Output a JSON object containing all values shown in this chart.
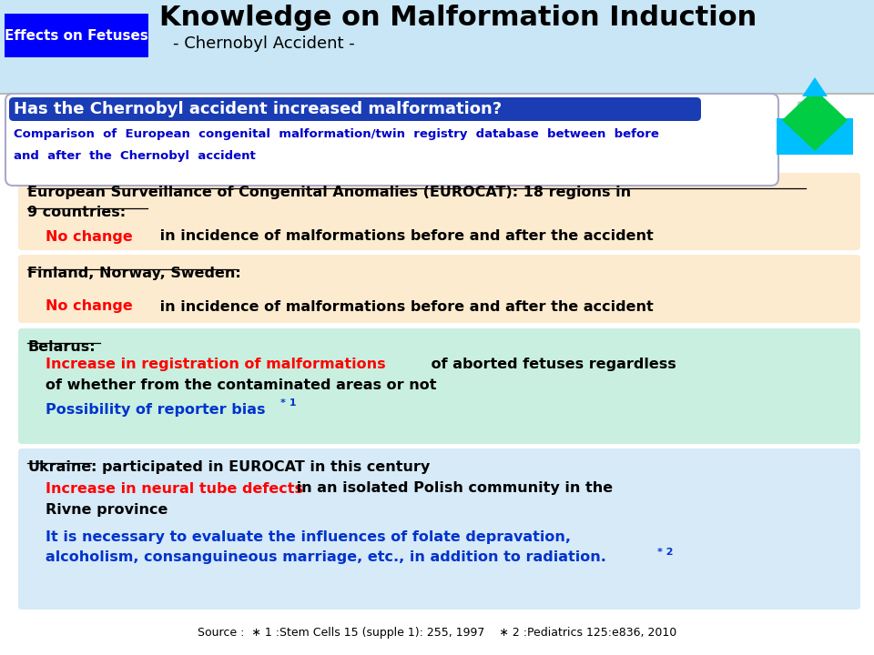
{
  "title_main": "Knowledge on Malformation Induction",
  "title_sub": "- Chernobyl Accident -",
  "tag_text": "Effects on Fetuses",
  "tag_bg": "#0000FF",
  "tag_fg": "#FFFFFF",
  "header_bg": "#C8E6F5",
  "question_text": "Has the Chernobyl accident increased malformation?",
  "question_bg": "#1A3DB5",
  "question_fg": "#FFFFFF",
  "comparison_line1": "Comparison  of  European  congenital  malformation/twin  registry  database  between  before",
  "comparison_line2": "and  after  the  Chernobyl  accident",
  "comparison_fg": "#0000CC",
  "box1_bg": "#FDEBD0",
  "box2_bg": "#FDEBD0",
  "box3_bg": "#C8EFE0",
  "box4_bg": "#D6EAF8",
  "source_text": "Source :  ∗ 1 :Stem Cells 15 (supple 1): 255, 1997    ∗ 2 :Pediatrics 125:e836, 2010",
  "bg_color": "#FFFFFF",
  "red_color": "#FF0000",
  "blue_color": "#0033CC",
  "black_color": "#000000",
  "header_line_color": "#AAAAAA"
}
